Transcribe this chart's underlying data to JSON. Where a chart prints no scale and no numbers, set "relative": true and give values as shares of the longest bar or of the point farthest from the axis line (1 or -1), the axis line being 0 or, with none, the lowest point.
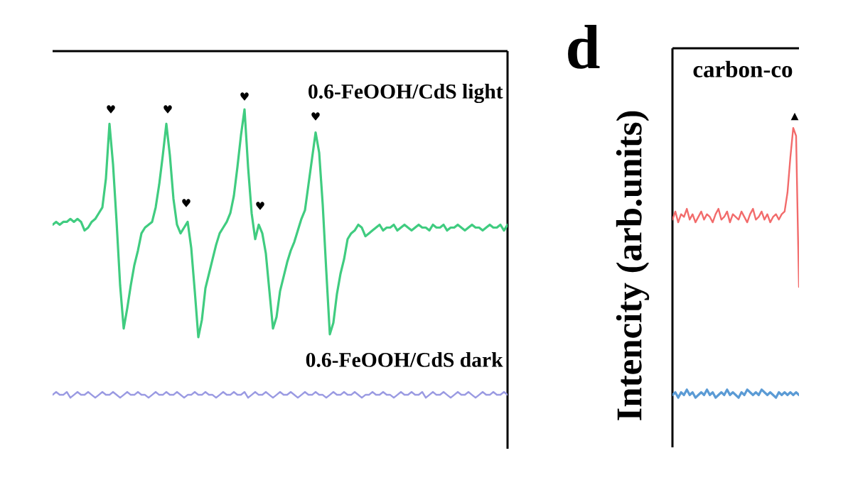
{
  "chart_data": [
    {
      "type": "line",
      "relative": true,
      "categories": [
        null,
        null,
        null,
        null,
        null,
        null,
        null,
        null,
        null,
        null,
        null,
        null,
        null,
        null,
        null,
        null,
        null,
        null,
        null,
        null,
        null,
        null,
        null,
        null,
        null,
        null,
        null,
        null,
        null,
        null,
        null,
        null,
        null,
        null,
        null,
        null,
        null,
        null,
        null,
        null,
        null,
        null,
        null,
        null,
        null,
        null,
        null,
        null,
        null,
        null,
        null,
        null,
        null,
        null,
        null,
        null,
        null,
        null,
        null,
        null,
        null,
        null,
        null,
        null,
        null,
        null,
        null,
        null,
        null,
        null,
        null,
        null,
        null,
        null,
        null,
        null,
        null,
        null,
        null,
        null,
        null,
        null,
        null,
        null,
        null,
        null,
        null,
        null,
        null,
        null,
        null,
        null,
        null,
        null,
        null,
        null,
        null,
        null,
        null,
        null,
        null,
        null,
        null,
        null,
        null,
        null,
        null,
        null,
        null,
        null,
        null,
        null,
        null,
        null,
        null,
        null,
        null,
        null,
        null,
        null,
        null,
        null,
        null,
        null,
        null,
        null,
        null,
        null,
        null
      ],
      "series": [
        {
          "name": "0.6-FeOOH/CdS light",
          "color": "#40cc80",
          "values": [
            0.6,
            0.61,
            0.6,
            0.61,
            0.61,
            0.62,
            0.61,
            0.62,
            0.61,
            0.58,
            0.59,
            0.61,
            0.62,
            0.64,
            0.66,
            0.76,
            0.95,
            0.81,
            0.61,
            0.39,
            0.24,
            0.31,
            0.39,
            0.46,
            0.51,
            0.57,
            0.59,
            0.6,
            0.61,
            0.66,
            0.74,
            0.84,
            0.95,
            0.84,
            0.69,
            0.6,
            0.57,
            0.59,
            0.61,
            0.52,
            0.37,
            0.21,
            0.27,
            0.38,
            0.43,
            0.48,
            0.53,
            0.57,
            0.59,
            0.61,
            0.64,
            0.7,
            0.8,
            0.91,
            1.0,
            0.8,
            0.64,
            0.55,
            0.6,
            0.57,
            0.5,
            0.37,
            0.24,
            0.28,
            0.37,
            0.42,
            0.47,
            0.51,
            0.54,
            0.58,
            0.62,
            0.65,
            0.74,
            0.83,
            0.92,
            0.85,
            0.67,
            0.44,
            0.22,
            0.26,
            0.36,
            0.43,
            0.48,
            0.55,
            0.57,
            0.58,
            0.6,
            0.59,
            0.56,
            0.57,
            0.58,
            0.59,
            0.6,
            0.58,
            0.59,
            0.59,
            0.6,
            0.58,
            0.59,
            0.6,
            0.59,
            0.58,
            0.59,
            0.6,
            0.59,
            0.59,
            0.58,
            0.6,
            0.59,
            0.59,
            0.6,
            0.58,
            0.59,
            0.59,
            0.6,
            0.59,
            0.58,
            0.59,
            0.6,
            0.59,
            0.59,
            0.58,
            0.59,
            0.6,
            0.59,
            0.59,
            0.6,
            0.58,
            0.6
          ]
        },
        {
          "name": "0.6-FeOOH/CdS dark",
          "color": "#9a9ae2",
          "values": [
            0.01,
            0.02,
            0.01,
            0.01,
            0.02,
            0.0,
            0.01,
            0.02,
            0.01,
            0.01,
            0.02,
            0.01,
            0.0,
            0.01,
            0.02,
            0.01,
            0.01,
            0.02,
            0.01,
            0.0,
            0.01,
            0.02,
            0.01,
            0.01,
            0.02,
            0.01,
            0.01,
            0.0,
            0.01,
            0.02,
            0.01,
            0.01,
            0.02,
            0.01,
            0.01,
            0.02,
            0.01,
            0.0,
            0.01,
            0.01,
            0.02,
            0.01,
            0.01,
            0.02,
            0.01,
            0.01,
            0.0,
            0.01,
            0.02,
            0.01,
            0.01,
            0.02,
            0.01,
            0.01,
            0.02,
            0.0,
            0.01,
            0.02,
            0.01,
            0.01,
            0.02,
            0.01,
            0.0,
            0.01,
            0.02,
            0.01,
            0.01,
            0.02,
            0.01,
            0.0,
            0.01,
            0.02,
            0.01,
            0.01,
            0.02,
            0.01,
            0.01,
            0.0,
            0.01,
            0.02,
            0.01,
            0.01,
            0.02,
            0.01,
            0.01,
            0.02,
            0.01,
            0.0,
            0.01,
            0.01,
            0.02,
            0.01,
            0.01,
            0.02,
            0.01,
            0.01,
            0.0,
            0.01,
            0.02,
            0.01,
            0.01,
            0.02,
            0.01,
            0.01,
            0.02,
            0.0,
            0.01,
            0.02,
            0.01,
            0.01,
            0.02,
            0.01,
            0.0,
            0.01,
            0.02,
            0.01,
            0.01,
            0.02,
            0.01,
            0.0,
            0.01,
            0.02,
            0.01,
            0.01,
            0.02,
            0.01,
            0.01,
            0.02,
            0.01
          ]
        }
      ],
      "annotations": [
        "♥",
        "♥",
        "♥",
        "♥",
        "♥",
        "♥"
      ]
    },
    {
      "type": "line",
      "relative": true,
      "ylabel": "Intencity (arb.units)",
      "categories": [
        null,
        null,
        null,
        null,
        null,
        null,
        null,
        null,
        null,
        null,
        null,
        null,
        null,
        null,
        null,
        null,
        null,
        null,
        null,
        null,
        null,
        null,
        null,
        null,
        null,
        null,
        null,
        null,
        null,
        null,
        null,
        null,
        null,
        null,
        null,
        null,
        null,
        null,
        null,
        null,
        null,
        null,
        null,
        null,
        null
      ],
      "series": [
        {
          "name": "carbon-co",
          "color": "#f26b6b",
          "values": [
            0.66,
            0.69,
            0.65,
            0.68,
            0.67,
            0.7,
            0.66,
            0.68,
            0.65,
            0.67,
            0.69,
            0.66,
            0.68,
            0.67,
            0.65,
            0.68,
            0.7,
            0.66,
            0.67,
            0.69,
            0.65,
            0.68,
            0.67,
            0.66,
            0.69,
            0.67,
            0.65,
            0.68,
            0.7,
            0.66,
            0.67,
            0.69,
            0.66,
            0.68,
            0.65,
            0.67,
            0.68,
            0.66,
            0.68,
            0.69,
            0.76,
            0.89,
            1.0,
            0.97,
            0.41
          ]
        },
        {
          "color": "#5b9bd5",
          "values": [
            0.01,
            0.02,
            0.0,
            0.02,
            0.01,
            0.03,
            0.01,
            0.02,
            0.0,
            0.01,
            0.02,
            0.01,
            0.03,
            0.01,
            0.02,
            0.0,
            0.01,
            0.02,
            0.01,
            0.03,
            0.01,
            0.02,
            0.01,
            0.0,
            0.02,
            0.01,
            0.03,
            0.02,
            0.01,
            0.02,
            0.01,
            0.03,
            0.02,
            0.01,
            0.02,
            0.01,
            0.0,
            0.02,
            0.01,
            0.02,
            0.01,
            0.02,
            0.01,
            0.02,
            0.01
          ]
        }
      ],
      "annotations": [
        "d",
        "▲"
      ]
    }
  ]
}
